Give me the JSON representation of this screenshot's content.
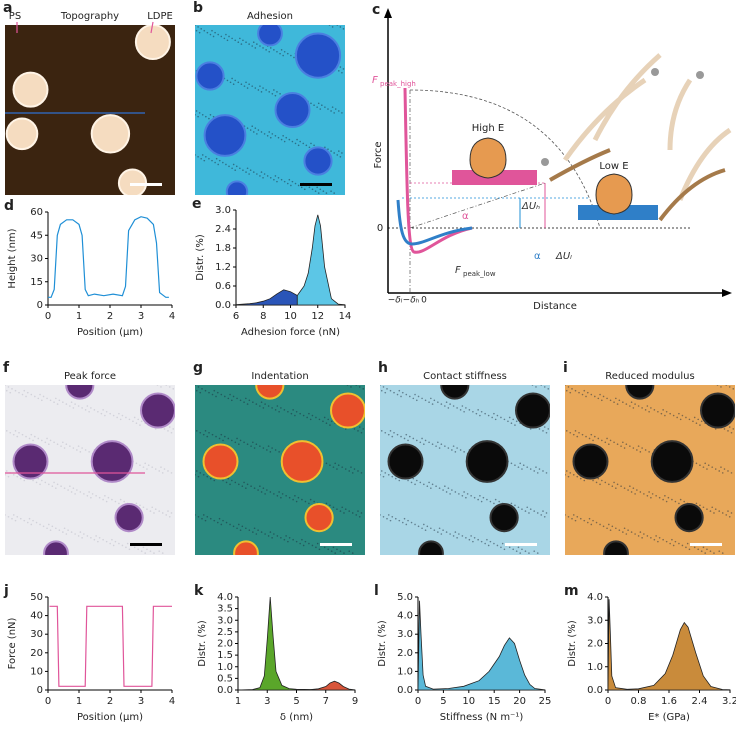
{
  "images": [
    {
      "panel": "a",
      "title": "Topography",
      "labels": [
        "PS",
        "LDPE"
      ]
    },
    {
      "panel": "b",
      "title": "Adhesion"
    },
    {
      "panel": "f",
      "title": "Peak force"
    },
    {
      "panel": "g",
      "title": "Indentation"
    },
    {
      "panel": "h",
      "title": "Contact stiffness"
    },
    {
      "panel": "i",
      "title": "Reduced modulus"
    }
  ],
  "diagram": {
    "panel": "c",
    "ylabel": "Force",
    "xlabel": "Distance",
    "zero": "0",
    "f_high": "F",
    "f_high_sub": "peak_high",
    "f_low": "F",
    "f_low_sub": "peak_low",
    "high_e": "High E",
    "low_e": "Low E",
    "alpha": "α",
    "du_h": "ΔUₕ",
    "du_l": "ΔUₗ",
    "delta_l": "−δₗ",
    "delta_h": "−δₕ",
    "origin": "0"
  },
  "chart_data": [
    {
      "panel": "d",
      "type": "line",
      "xlabel": "Position (μm)",
      "ylabel": "Height (nm)",
      "xlim": [
        0,
        4
      ],
      "ylim": [
        0,
        60
      ],
      "xticks": [
        0,
        1,
        2,
        3,
        4
      ],
      "yticks": [
        0,
        15,
        30,
        45,
        60
      ],
      "fill": false,
      "series": [
        {
          "color": "#1f8fd6",
          "x": [
            0,
            0.1,
            0.2,
            0.3,
            0.4,
            0.6,
            0.8,
            1.0,
            1.1,
            1.2,
            1.3,
            1.5,
            1.8,
            2.1,
            2.4,
            2.5,
            2.6,
            2.8,
            3.0,
            3.2,
            3.4,
            3.5,
            3.6,
            3.8,
            3.9
          ],
          "values": [
            5,
            5,
            10,
            45,
            52,
            55,
            55,
            52,
            45,
            10,
            6,
            7,
            6,
            7,
            6,
            12,
            48,
            55,
            57,
            56,
            52,
            40,
            8,
            5,
            5
          ]
        }
      ]
    },
    {
      "panel": "e",
      "type": "area",
      "xlabel": "Adhesion force (nN)",
      "ylabel": "Distr. (%)",
      "xlim": [
        6,
        14
      ],
      "ylim": [
        0,
        3
      ],
      "xticks": [
        6,
        8,
        10,
        12,
        14
      ],
      "yticks": [
        {
          "value": 0,
          "label": "0.0"
        },
        0.6,
        1.2,
        1.8,
        2.4,
        {
          "value": 3,
          "label": "3.0"
        }
      ],
      "fill": true,
      "series": [
        {
          "color": "#2a55b8",
          "x": [
            6,
            7,
            7.5,
            8,
            8.5,
            9,
            9.5,
            10,
            10.5
          ],
          "values": [
            0.01,
            0.04,
            0.07,
            0.12,
            0.2,
            0.35,
            0.48,
            0.42,
            0.3
          ]
        },
        {
          "color": "#5cc6e6",
          "x": [
            10.5,
            11,
            11.3,
            11.6,
            11.8,
            12,
            12.2,
            12.5,
            13,
            13.5,
            14
          ],
          "values": [
            0.3,
            0.6,
            1.0,
            1.8,
            2.5,
            2.85,
            2.5,
            1.2,
            0.2,
            0.03,
            0.01
          ]
        }
      ]
    },
    {
      "panel": "j",
      "type": "line",
      "xlabel": "Position (μm)",
      "ylabel": "Force (nN)",
      "xlim": [
        0,
        4
      ],
      "ylim": [
        0,
        50
      ],
      "xticks": [
        0,
        1,
        2,
        3,
        4
      ],
      "yticks": [
        0,
        10,
        20,
        30,
        40,
        50
      ],
      "fill": false,
      "series": [
        {
          "color": "#e0559a",
          "x": [
            0.05,
            0.3,
            0.35,
            1.2,
            1.25,
            2.4,
            2.45,
            3.35,
            3.4,
            4
          ],
          "values": [
            45,
            45,
            2,
            2,
            45,
            45,
            2,
            2,
            45,
            45
          ]
        }
      ]
    },
    {
      "panel": "k",
      "type": "area",
      "xlabel": "δ (nm)",
      "ylabel": "Distr. (%)",
      "xlim": [
        1,
        9
      ],
      "ylim": [
        0,
        4
      ],
      "xticks": [
        1,
        3,
        5,
        7,
        9
      ],
      "yticks": [
        {
          "value": 0,
          "label": "0.0"
        },
        0.5,
        {
          "value": 1,
          "label": "1.0"
        },
        1.5,
        {
          "value": 2,
          "label": "2.0"
        },
        2.5,
        {
          "value": 3,
          "label": "3.0"
        },
        3.5,
        {
          "value": 4,
          "label": "4.0"
        }
      ],
      "fill": true,
      "series": [
        {
          "color": "#5aa62a",
          "x": [
            1,
            2,
            2.5,
            2.8,
            3,
            3.2,
            3.4,
            3.6,
            4,
            4.5,
            5,
            6
          ],
          "values": [
            0,
            0.02,
            0.1,
            0.6,
            2.2,
            4.0,
            2.3,
            0.8,
            0.2,
            0.06,
            0.03,
            0.02
          ]
        },
        {
          "color": "#d8553a",
          "x": [
            6,
            6.5,
            7,
            7.3,
            7.6,
            7.9,
            8.2,
            8.6,
            9
          ],
          "values": [
            0.02,
            0.05,
            0.15,
            0.3,
            0.38,
            0.3,
            0.15,
            0.04,
            0.01
          ]
        }
      ]
    },
    {
      "panel": "l",
      "type": "area",
      "xlabel": "Stiffness (N m⁻¹)",
      "ylabel": "Distr. (%)",
      "xlim": [
        0,
        25
      ],
      "ylim": [
        0,
        5
      ],
      "xticks": [
        0,
        5,
        10,
        15,
        20,
        25
      ],
      "yticks": [
        {
          "value": 0,
          "label": "0.0"
        },
        {
          "value": 1,
          "label": "1.0"
        },
        {
          "value": 2,
          "label": "2.0"
        },
        {
          "value": 3,
          "label": "3.0"
        },
        {
          "value": 4,
          "label": "4.0"
        },
        {
          "value": 5,
          "label": "5.0"
        }
      ],
      "fill": true,
      "series": [
        {
          "color": "#5ab8d8",
          "x": [
            0,
            0.3,
            0.6,
            1,
            1.5,
            3,
            6,
            9,
            12,
            14,
            16,
            17,
            18,
            19,
            20,
            21,
            22,
            23,
            25
          ],
          "values": [
            0,
            4.8,
            3.0,
            0.8,
            0.2,
            0.05,
            0.08,
            0.2,
            0.5,
            1.0,
            1.8,
            2.4,
            2.8,
            2.5,
            1.6,
            0.8,
            0.3,
            0.08,
            0.01
          ]
        }
      ]
    },
    {
      "panel": "m",
      "type": "area",
      "xlabel": "E* (GPa)",
      "ylabel": "Distr. (%)",
      "xlim": [
        0,
        3.2
      ],
      "ylim": [
        0,
        4
      ],
      "xticks": [
        0,
        0.8,
        1.6,
        2.4,
        3.2
      ],
      "yticks": [
        {
          "value": 0,
          "label": "0.0"
        },
        {
          "value": 1,
          "label": "1.0"
        },
        {
          "value": 2,
          "label": "2.0"
        },
        {
          "value": 3,
          "label": "3.0"
        },
        {
          "value": 4,
          "label": "4.0"
        }
      ],
      "fill": true,
      "series": [
        {
          "color": "#c98b3b",
          "x": [
            0,
            0.03,
            0.06,
            0.1,
            0.2,
            0.5,
            0.8,
            1.2,
            1.5,
            1.7,
            1.9,
            2.0,
            2.1,
            2.3,
            2.5,
            2.7,
            3.0,
            3.2
          ],
          "values": [
            0,
            3.9,
            2.5,
            0.6,
            0.1,
            0.03,
            0.05,
            0.2,
            0.7,
            1.5,
            2.6,
            2.9,
            2.7,
            1.6,
            0.6,
            0.15,
            0.02,
            0.01
          ]
        }
      ]
    }
  ]
}
